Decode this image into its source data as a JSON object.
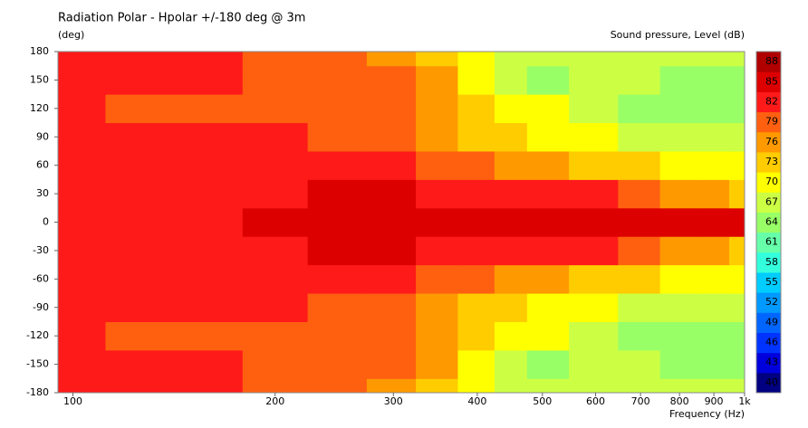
{
  "chart_data": {
    "type": "contour",
    "title": "Radiation Polar - Hpolar +/-180 deg @ 3m",
    "y_label": "(deg)",
    "x_label": "Frequency  (Hz)",
    "colorbar_label": "Sound pressure, Level  (dB)",
    "log_x": true,
    "x": [
      100,
      125,
      160,
      200,
      250,
      300,
      350,
      400,
      450,
      500,
      600,
      700,
      800,
      900,
      1000
    ],
    "y": [
      -180,
      -150,
      -120,
      -90,
      -60,
      -30,
      0,
      30,
      60,
      90,
      120,
      150,
      180
    ],
    "z": [
      [
        83,
        83,
        82,
        81,
        80,
        78,
        75,
        72,
        69,
        68,
        67,
        68,
        68,
        67,
        67
      ],
      [
        83,
        82,
        82,
        81,
        80,
        79,
        76,
        72,
        68,
        66,
        67,
        67,
        66,
        65,
        66
      ],
      [
        82,
        81,
        81,
        81,
        80,
        79,
        77,
        73,
        71,
        70,
        68,
        66,
        64,
        64,
        66
      ],
      [
        82,
        82,
        82,
        82,
        81,
        80,
        78,
        75,
        73,
        72,
        70,
        69,
        68,
        67,
        67
      ],
      [
        83,
        83,
        83,
        83,
        83,
        82,
        81,
        79,
        78,
        77,
        75,
        73,
        72,
        71,
        70
      ],
      [
        83,
        83,
        83,
        84,
        86,
        85,
        84,
        84,
        83,
        83,
        82,
        80,
        78,
        76,
        75
      ],
      [
        83,
        83,
        84,
        85,
        87,
        87,
        87,
        87,
        86,
        86,
        86,
        86,
        86,
        86,
        86
      ],
      [
        83,
        83,
        83,
        84,
        86,
        85,
        84,
        84,
        83,
        83,
        82,
        80,
        78,
        76,
        75
      ],
      [
        83,
        83,
        83,
        83,
        83,
        82,
        81,
        79,
        78,
        77,
        75,
        73,
        72,
        71,
        70
      ],
      [
        82,
        82,
        82,
        82,
        81,
        80,
        78,
        75,
        73,
        72,
        70,
        69,
        68,
        67,
        67
      ],
      [
        82,
        81,
        81,
        81,
        80,
        79,
        77,
        73,
        71,
        70,
        68,
        66,
        64,
        64,
        66
      ],
      [
        83,
        82,
        82,
        81,
        80,
        79,
        76,
        72,
        68,
        66,
        67,
        67,
        66,
        65,
        66
      ],
      [
        83,
        83,
        82,
        81,
        80,
        78,
        75,
        72,
        69,
        68,
        67,
        68,
        68,
        67,
        67
      ]
    ],
    "xlim": [
      95,
      1000
    ],
    "ylim": [
      -180,
      180
    ],
    "xticks": [
      100,
      200,
      300,
      400,
      500,
      600,
      700,
      800,
      900,
      {
        "value": 1000,
        "label": "1k"
      }
    ],
    "yticks": [
      -180,
      -150,
      -120,
      -90,
      -60,
      -30,
      0,
      30,
      60,
      90,
      120,
      150,
      180
    ],
    "levels": [
      40,
      43,
      46,
      49,
      52,
      55,
      58,
      61,
      64,
      67,
      70,
      73,
      76,
      79,
      82,
      85,
      88
    ],
    "colors": [
      "#000080",
      "#0000dd",
      "#0033ff",
      "#0066ff",
      "#0099ff",
      "#00ccff",
      "#33ffdd",
      "#66ffaa",
      "#99ff66",
      "#ccff44",
      "#ffff00",
      "#ffcc00",
      "#ff9900",
      "#ff6010",
      "#ff1a1a",
      "#dd0000",
      "#b00000"
    ]
  }
}
